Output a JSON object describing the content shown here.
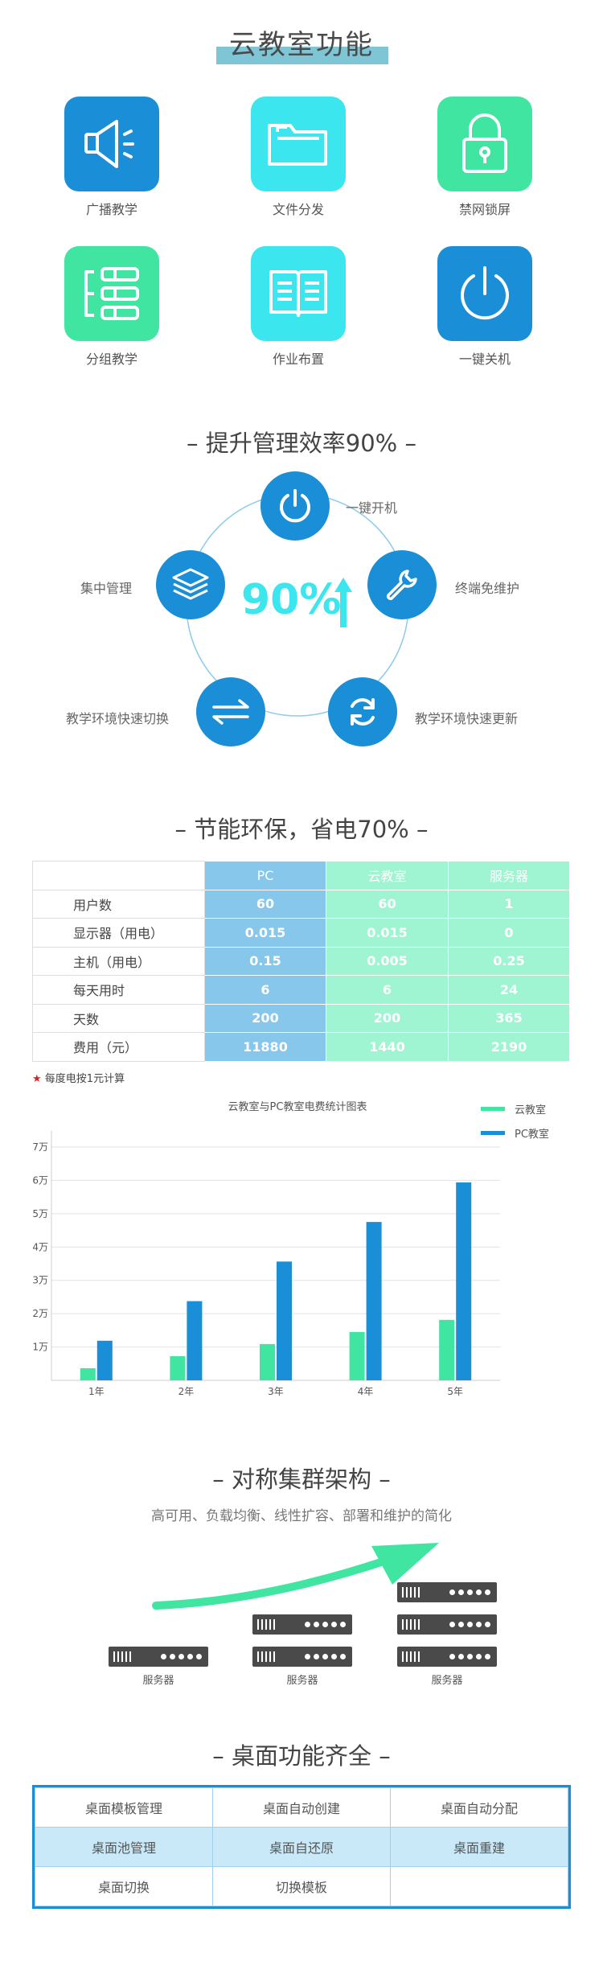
{
  "section1": {
    "title": "云教室功能",
    "features": [
      {
        "label": "广播教学",
        "icon": "megaphone-icon",
        "color": "#1a8ed6"
      },
      {
        "label": "文件分发",
        "icon": "folder-icon",
        "color": "#3be6ef"
      },
      {
        "label": "禁网锁屏",
        "icon": "lock-icon",
        "color": "#3fe5a0"
      },
      {
        "label": "分组教学",
        "icon": "group-list-icon",
        "color": "#3fe5a0"
      },
      {
        "label": "作业布置",
        "icon": "book-icon",
        "color": "#3be6ef"
      },
      {
        "label": "一键关机",
        "icon": "power-icon",
        "color": "#1a8ed6"
      }
    ]
  },
  "section2": {
    "title": "– 提升管理效率90% –",
    "center_value": "90%",
    "nodes": [
      {
        "label": "一键开机",
        "icon": "power-icon"
      },
      {
        "label": "终端免维护",
        "icon": "wrench-icon"
      },
      {
        "label": "教学环境快速更新",
        "icon": "refresh-icon"
      },
      {
        "label": "教学环境快速切换",
        "icon": "switch-arrows-icon"
      },
      {
        "label": "集中管理",
        "icon": "layers-icon"
      }
    ]
  },
  "section3": {
    "title": "– 节能环保，省电70% –",
    "table": {
      "headers": [
        "",
        "PC",
        "云教室",
        "服务器"
      ],
      "rows": [
        [
          "用户数",
          "60",
          "60",
          "1"
        ],
        [
          "显示器（用电）",
          "0.015",
          "0.015",
          "0"
        ],
        [
          "主机（用电）",
          "0.15",
          "0.005",
          "0.25"
        ],
        [
          "每天用时",
          "6",
          "6",
          "24"
        ],
        [
          "天数",
          "200",
          "200",
          "365"
        ],
        [
          "费用（元）",
          "11880",
          "1440",
          "2190"
        ]
      ]
    },
    "note": "每度电按1元计算",
    "note_star": "★"
  },
  "chart_data": {
    "type": "bar",
    "title": "云教室与PC教室电费统计图表",
    "categories": [
      "1年",
      "2年",
      "3年",
      "4年",
      "5年"
    ],
    "series": [
      {
        "name": "云教室",
        "color": "#3fe5a0",
        "values": [
          3630,
          7260,
          10890,
          14520,
          18150
        ]
      },
      {
        "name": "PC教室",
        "color": "#1a8ed6",
        "values": [
          11880,
          23760,
          35640,
          47520,
          59400
        ]
      }
    ],
    "y_ticks": [
      "1万",
      "2万",
      "3万",
      "4万",
      "5万",
      "6万",
      "7万"
    ],
    "ylim": [
      0,
      70000
    ],
    "legend": "top-right",
    "grid": true
  },
  "section4": {
    "title": "– 对称集群架构 –",
    "subtitle": "高可用、负载均衡、线性扩容、部署和维护的简化",
    "server_labels": [
      "服务器",
      "服务器",
      "服务器"
    ]
  },
  "section5": {
    "title": "– 桌面功能齐全 –",
    "rows": [
      [
        "桌面模板管理",
        "桌面自动创建",
        "桌面自动分配"
      ],
      [
        "桌面池管理",
        "桌面自还原",
        "桌面重建"
      ],
      [
        "桌面切换",
        "切换模板",
        ""
      ]
    ]
  }
}
